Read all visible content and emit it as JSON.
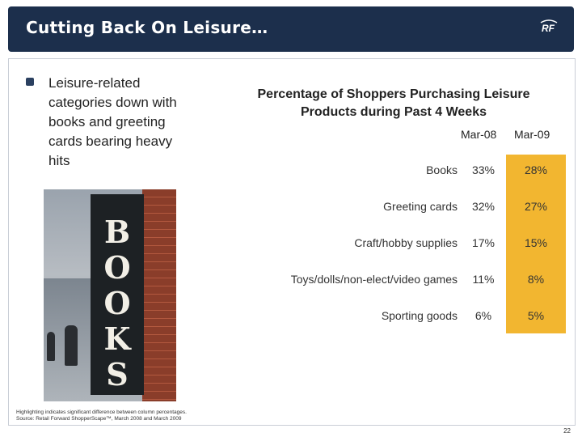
{
  "header": {
    "title": "Cutting Back On Leisure…",
    "logo_text": "RF"
  },
  "bullet": {
    "text": "Leisure-related categories down with books and greeting cards bearing heavy hits"
  },
  "photo": {
    "letters": [
      "B",
      "O",
      "O",
      "K",
      "S"
    ]
  },
  "table": {
    "title": "Percentage of Shoppers Purchasing Leisure Products during Past 4 Weeks",
    "columns": [
      "Mar-08",
      "Mar-09"
    ],
    "highlight_color": "#f2b630",
    "rows": [
      {
        "label": "Books",
        "mar08": "33%",
        "mar09": "28%"
      },
      {
        "label": "Greeting cards",
        "mar08": "32%",
        "mar09": "27%"
      },
      {
        "label": "Craft/hobby supplies",
        "mar08": "17%",
        "mar09": "15%"
      },
      {
        "label": "Toys/dolls/non-elect/video games",
        "mar08": "11%",
        "mar09": "8%"
      },
      {
        "label": "Sporting goods",
        "mar08": "6%",
        "mar09": "5%"
      }
    ]
  },
  "footnote": {
    "line1": "Highlighting indicates significant difference between column percentages.",
    "line2": "Source: Retail Forward ShopperScape™, March 2008 and March 2009"
  },
  "page_number": "22",
  "colors": {
    "header_bg": "#1c2f4c",
    "bullet": "#2b4060"
  }
}
